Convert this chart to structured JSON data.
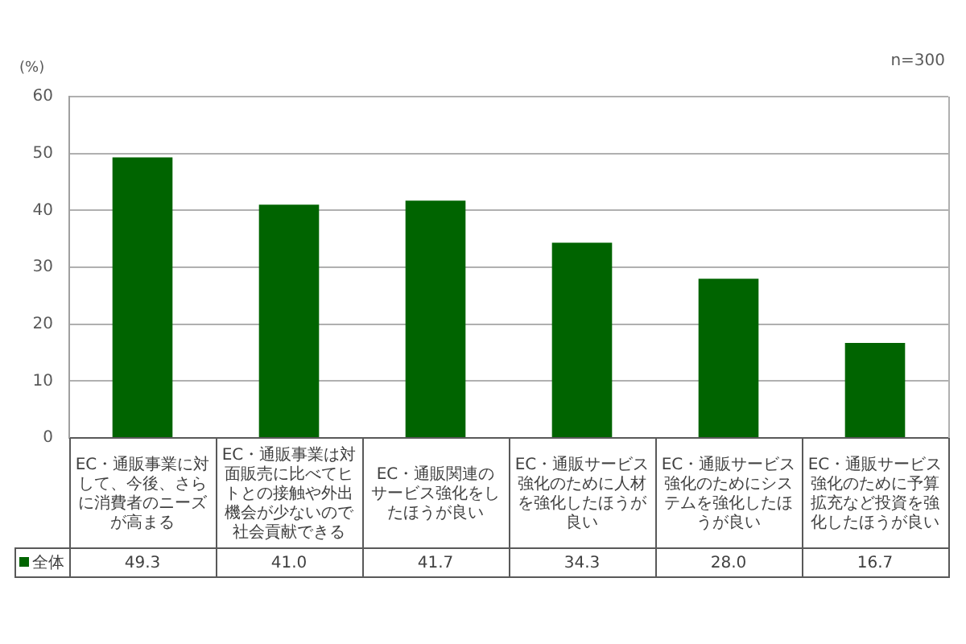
{
  "chart_data": {
    "type": "bar",
    "ylabel": "(%)",
    "annotations": [
      "n=300"
    ],
    "categories": [
      "EC・通販事業に対して、今後、さらに消費者のニーズが高まる",
      "EC・通販事業は対面販売に比べてヒトとの接触や外出機会が少ないので社会貢献できる",
      "EC・通販関連のサービス強化をしたほうが良い",
      "EC・通販サービス強化のために人材を強化したほうが良い",
      "EC・通販サービス強化のためにシステムを強化したほうが良い",
      "EC・通販サービス強化のために予算拡充など投資を強化したほうが良い"
    ],
    "series": [
      {
        "name": "全体",
        "color": "#006400",
        "values": [
          49.3,
          41.0,
          41.7,
          34.3,
          28.0,
          16.7
        ],
        "value_labels": [
          "49.3",
          "41.0",
          "41.7",
          "34.3",
          "28.0",
          "16.7"
        ]
      }
    ],
    "ylim": [
      0,
      60
    ],
    "yticks": [
      0,
      10,
      20,
      30,
      40,
      50,
      60
    ],
    "grid": "y",
    "legend": "bottom left"
  }
}
